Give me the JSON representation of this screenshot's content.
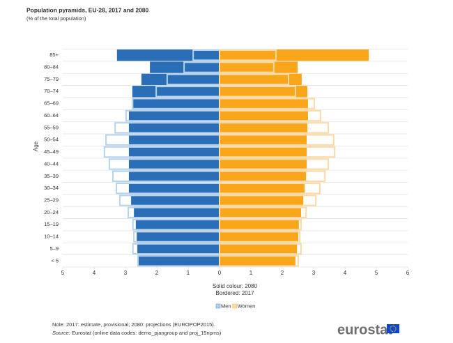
{
  "chart_data": {
    "type": "pyramid",
    "title": "Population pyramids, EU-28, 2017 and 2080",
    "subtitle": "(% of the total population)",
    "y_label": "Age",
    "x_label_lines": [
      "Solid colour: 2080",
      "Bordered: 2017"
    ],
    "categories": [
      "85+",
      "80–84",
      "75–79",
      "70–74",
      "65–69",
      "60–64",
      "55–59",
      "50–54",
      "45–49",
      "40–44",
      "35–39",
      "30–34",
      "25–29",
      "20–24",
      "15–19",
      "10–14",
      "5–9",
      "< 5"
    ],
    "series": [
      {
        "name": "Men",
        "color": "#2b6eb8",
        "outline_color": "#b5d3ef",
        "values": [
          -3.27,
          -2.22,
          -2.49,
          -2.78,
          -2.75,
          -2.89,
          -2.89,
          -2.89,
          -2.89,
          -2.89,
          -2.89,
          -2.89,
          -2.82,
          -2.73,
          -2.67,
          -2.64,
          -2.62,
          -2.58
        ],
        "values_2017": [
          -0.84,
          -1.13,
          -1.67,
          -2.02,
          -2.78,
          -2.98,
          -3.33,
          -3.62,
          -3.67,
          -3.51,
          -3.4,
          -3.29,
          -3.18,
          -2.91,
          -2.76,
          -2.73,
          -2.76,
          -2.6
        ]
      },
      {
        "name": "Women",
        "color": "#faa61a",
        "outline_color": "#fdd9a3",
        "values": [
          4.76,
          2.49,
          2.62,
          2.8,
          2.82,
          2.82,
          2.8,
          2.78,
          2.78,
          2.78,
          2.76,
          2.71,
          2.67,
          2.6,
          2.53,
          2.51,
          2.47,
          2.42
        ],
        "values_2017": [
          1.8,
          1.73,
          2.2,
          2.42,
          3.02,
          3.22,
          3.47,
          3.64,
          3.67,
          3.47,
          3.36,
          3.2,
          3.07,
          2.76,
          2.6,
          2.56,
          2.6,
          2.51
        ]
      }
    ],
    "xlim": [
      -5,
      6
    ],
    "xticks": [
      {
        "value": -5,
        "label": "5"
      },
      {
        "value": -4,
        "label": "4"
      },
      {
        "value": -3,
        "label": "3"
      },
      {
        "value": -2,
        "label": "2"
      },
      {
        "value": -1,
        "label": "1"
      },
      0,
      1,
      2,
      3,
      4,
      5,
      6
    ],
    "grid": true,
    "legend": "bottom"
  },
  "footer": {
    "note": "Note: 2017: estimate, provisional; 2080: projections (EUROPOP2015).",
    "source_label": "Source:",
    "source": "Eurostat (online data codes: demo_pjangroup and proj_15npms)",
    "logo": "eurostat"
  }
}
